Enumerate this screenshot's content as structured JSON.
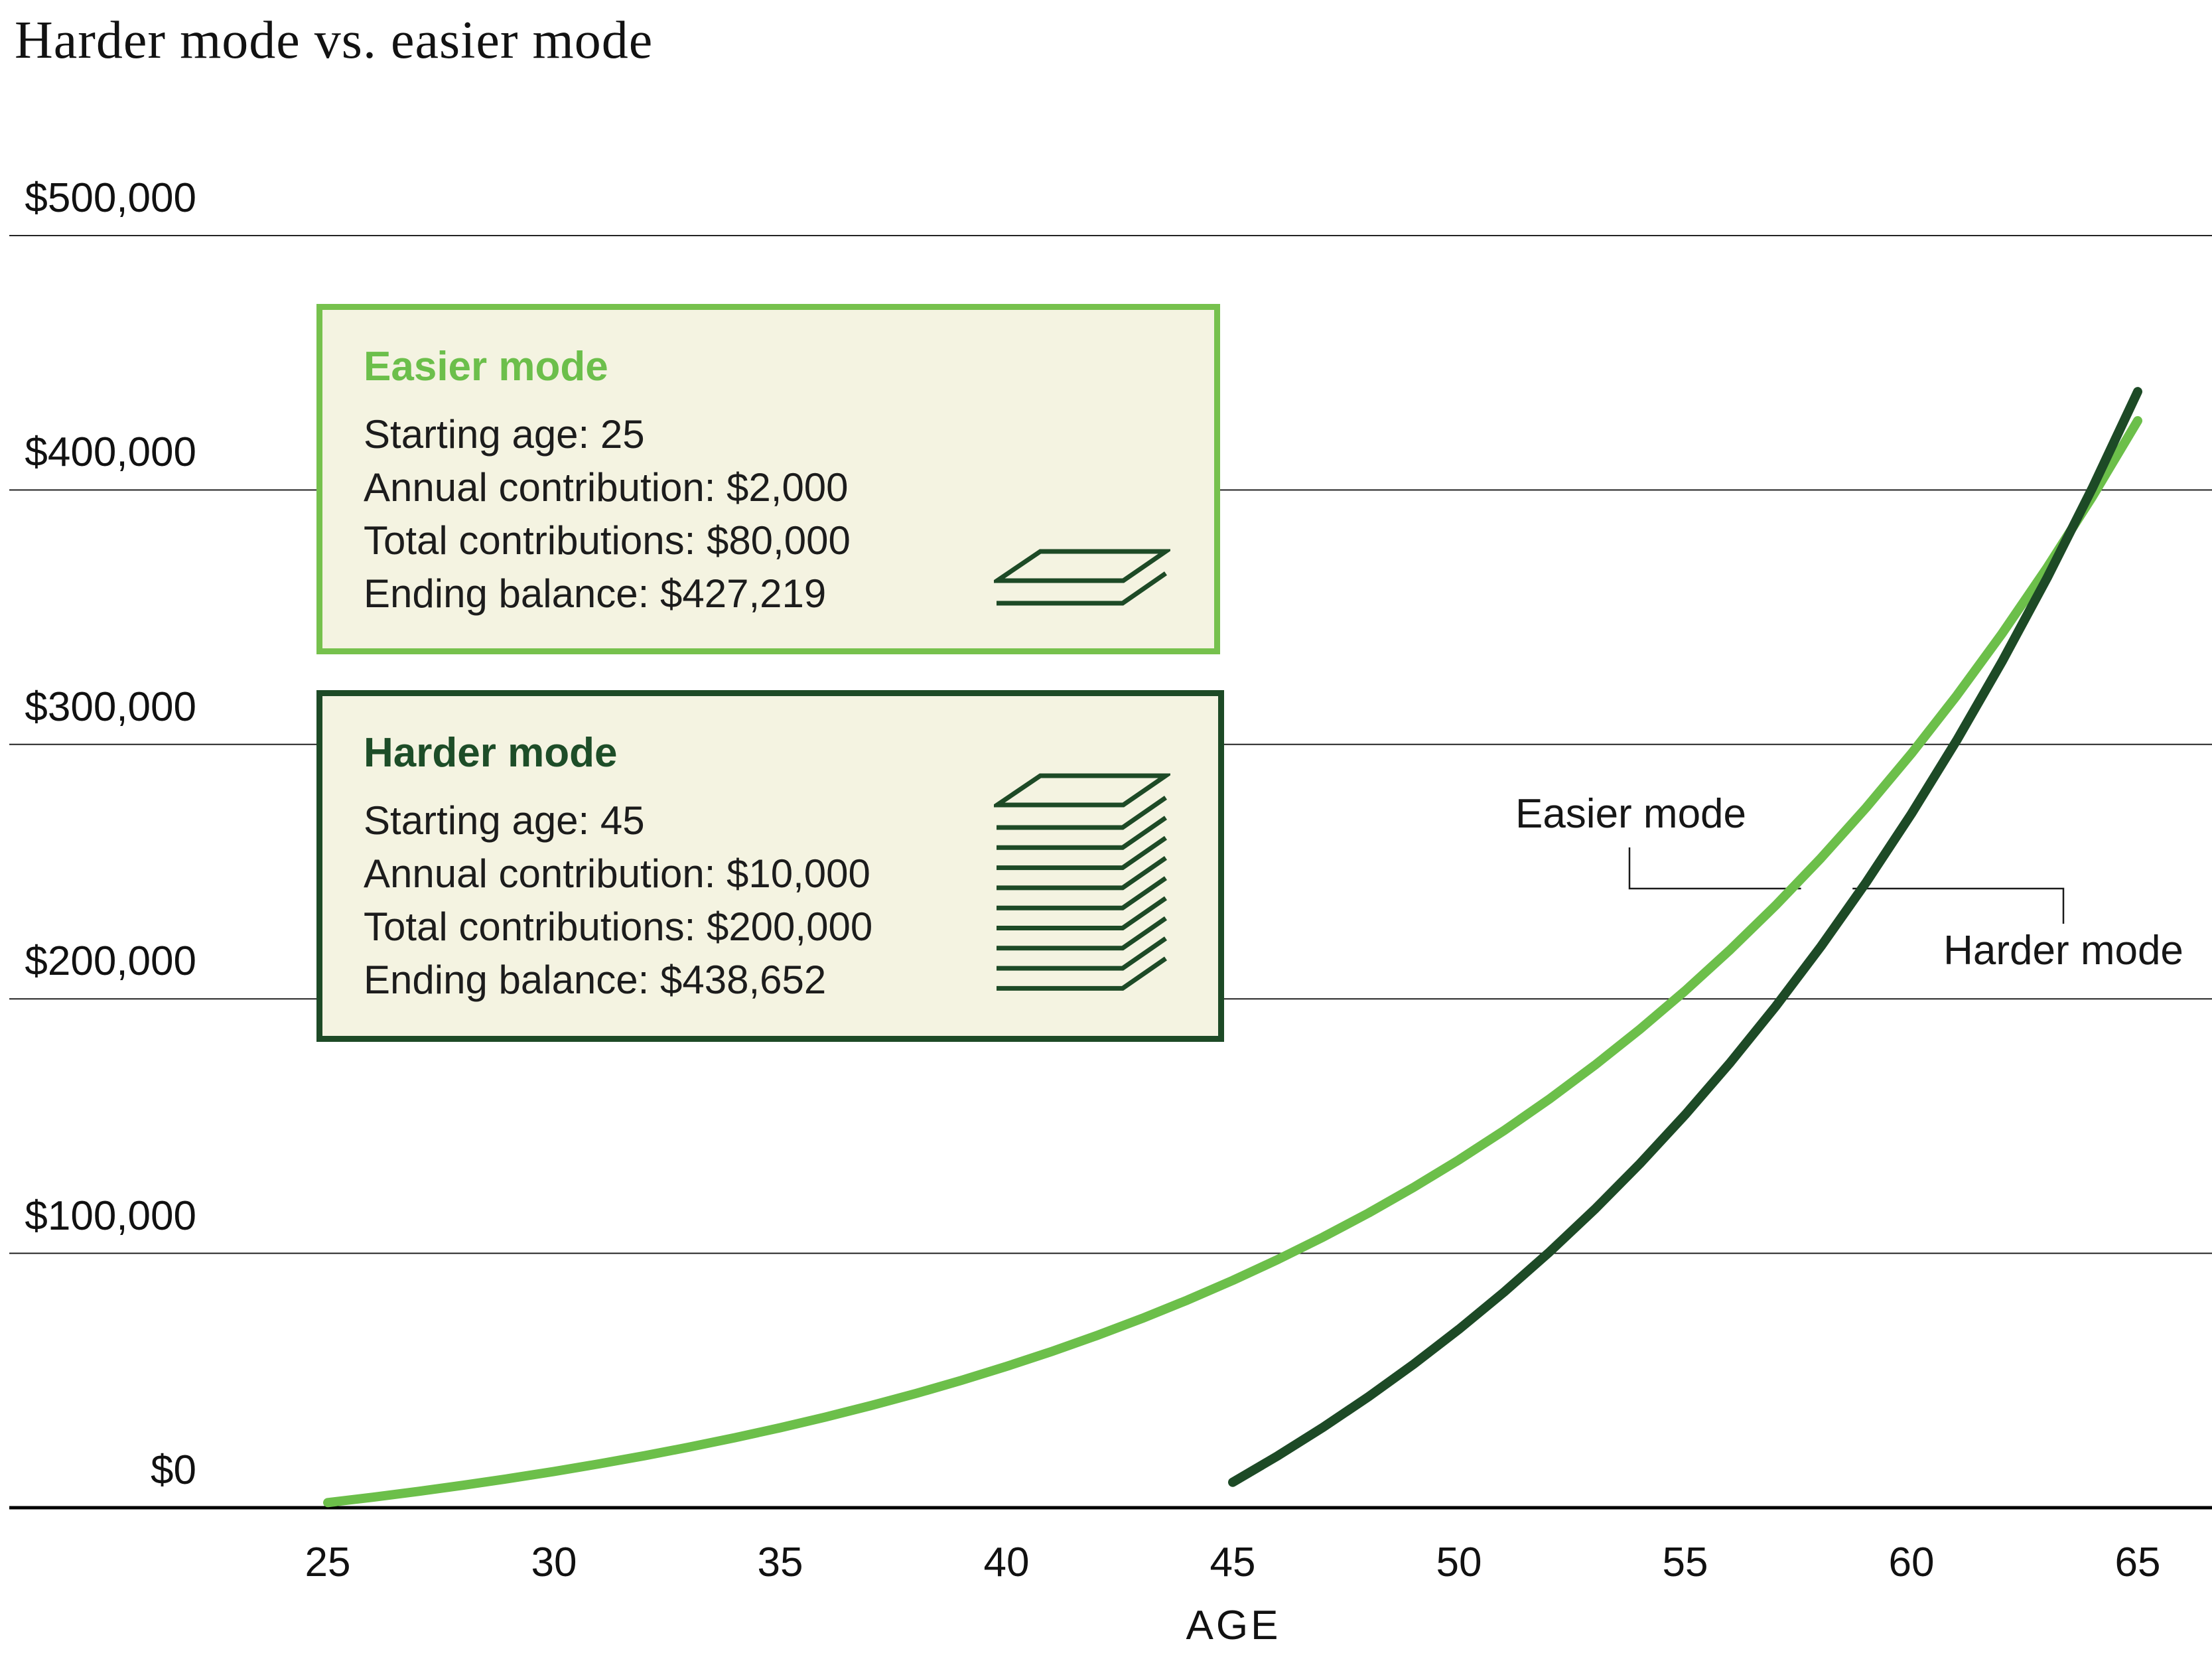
{
  "title": "Harder mode vs. easier mode",
  "colors": {
    "light_green": "#6cbf4a",
    "dark_green": "#1d4a26",
    "box_background": "#f4f3e1",
    "easier_border": "#76c14d",
    "grid_line": "#232323",
    "axis_line": "#000000",
    "text": "#1c1c1c"
  },
  "chart_data": {
    "type": "line",
    "title": "Harder mode vs. easier mode",
    "xlabel": "AGE",
    "ylabel": "",
    "xlim": [
      25,
      65
    ],
    "ylim": [
      0,
      500000
    ],
    "grid": "horizontal",
    "x_tick_labels": [
      "25",
      "30",
      "35",
      "40",
      "45",
      "50",
      "55",
      "60",
      "65"
    ],
    "y_tick_labels": [
      "$0",
      "$100,000",
      "$200,000",
      "$300,000",
      "$400,000",
      "$500,000"
    ],
    "series": [
      {
        "name": "Easier mode",
        "color": "#6cbf4a",
        "start_age": 25,
        "ending_balance": 427219,
        "values": [
          2000,
          4130,
          6409,
          8848,
          11457,
          14249,
          17236,
          20433,
          23853,
          27513,
          31429,
          35619,
          40102,
          44899,
          50032,
          55524,
          61401,
          67689,
          74417,
          81617,
          89320,
          97562,
          106381,
          115816,
          125913,
          136716,
          148276,
          160646,
          173881,
          188043,
          203195,
          219408,
          236754,
          255313,
          275175,
          296431,
          319176,
          343511,
          369546,
          397406,
          427219
        ]
      },
      {
        "name": "Harder mode",
        "color": "#1d4a26",
        "start_age": 45,
        "ending_balance": 438652,
        "values": [
          10000,
          20456,
          31644,
          43616,
          56425,
          70132,
          84796,
          100488,
          117278,
          135242,
          154465,
          175035,
          197045,
          220593,
          245789,
          272751,
          301601,
          332469,
          365502,
          400843,
          438652
        ]
      }
    ]
  },
  "infoboxes": [
    {
      "id": "easier",
      "title": "Easier mode",
      "title_color": "#6cbf4b",
      "border_color": "#76c14d",
      "background_color": "#f4f3e1",
      "lines": [
        "Starting age: 25",
        "Annual contribution: $2,000",
        "Total contributions: $80,000",
        "Ending balance: $427,219"
      ],
      "icon": {
        "name": "money-stack-icon",
        "layers": 1
      }
    },
    {
      "id": "harder",
      "title": "Harder mode",
      "title_color": "#1d4d28",
      "border_color": "#1d4a26",
      "background_color": "#f4f3e1",
      "lines": [
        "Starting age: 45",
        "Annual contribution: $10,000",
        "Total contributions: $200,000",
        "Ending balance: $438,652"
      ],
      "icon": {
        "name": "money-stack-icon",
        "layers": 9
      }
    }
  ],
  "curve_labels": [
    {
      "text": "Easier mode"
    },
    {
      "text": "Harder mode"
    }
  ]
}
